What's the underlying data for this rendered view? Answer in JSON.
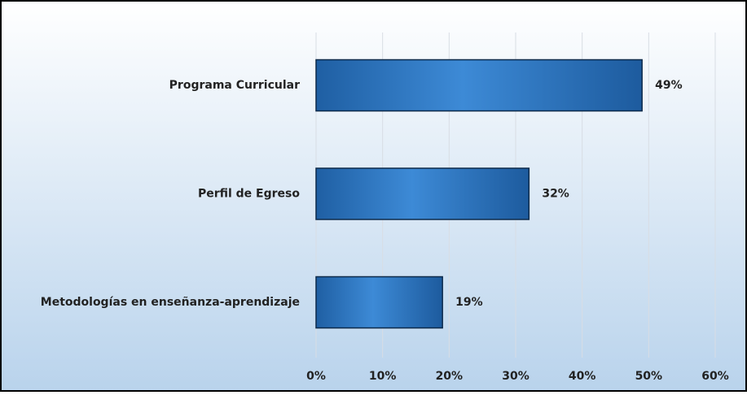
{
  "chart_data": {
    "type": "bar",
    "orientation": "horizontal",
    "categories": [
      "Programa Curricular",
      "Perfil de Egreso",
      "Metodologías en enseñanza-aprendizaje"
    ],
    "values": [
      49,
      32,
      19
    ],
    "value_labels": [
      "49%",
      "32%",
      "19%"
    ],
    "color": "#2f78c0",
    "xlim": [
      0,
      60
    ],
    "xticks": [
      {
        "value": 0,
        "label": "0%"
      },
      {
        "value": 10,
        "label": "10%"
      },
      {
        "value": 20,
        "label": "20%"
      },
      {
        "value": 30,
        "label": "30%"
      },
      {
        "value": 40,
        "label": "40%"
      },
      {
        "value": 50,
        "label": "50%"
      },
      {
        "value": 60,
        "label": "60%"
      }
    ],
    "grid": true
  }
}
